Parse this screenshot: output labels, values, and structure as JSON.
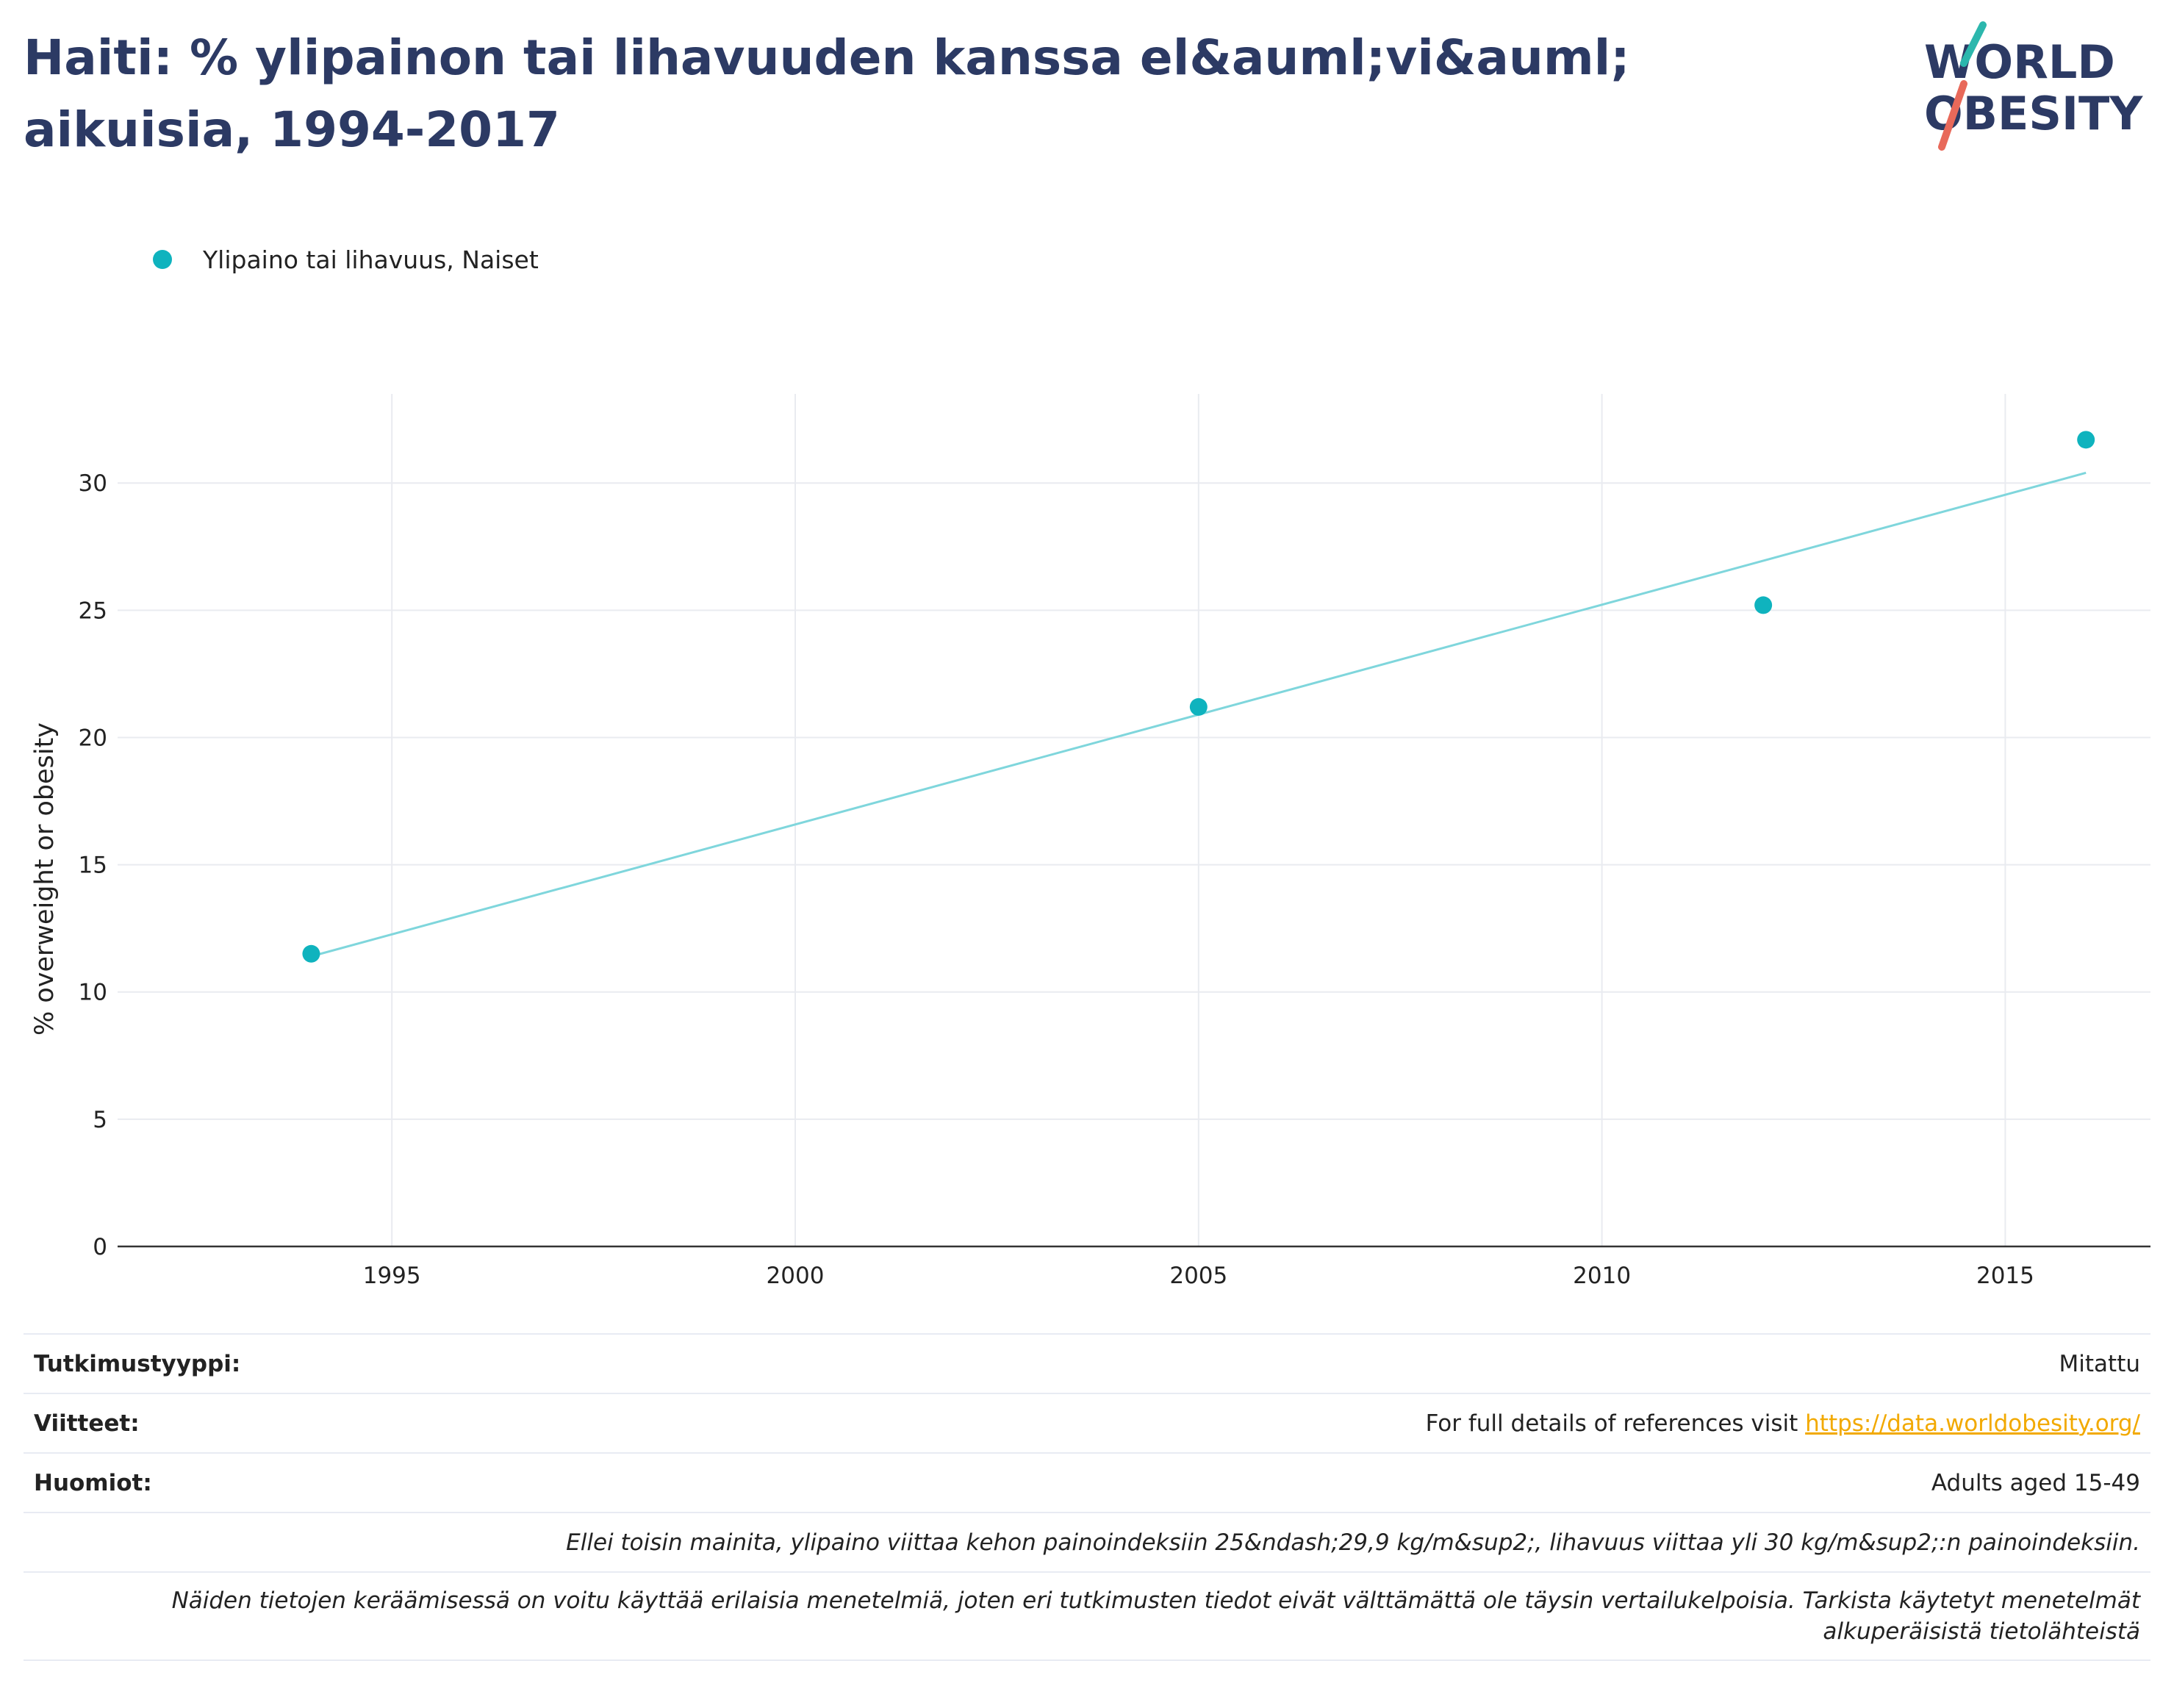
{
  "title": "Haiti: % ylipainon tai lihavuuden kanssa el&auml;vi&auml; aikuisia, 1994-2017",
  "logo": {
    "line1": "WORLD",
    "line2": "OBESITY"
  },
  "colors": {
    "series": "#0fb3be",
    "trend": "#7fd6dc",
    "title": "#2c3a64",
    "link": "#f2a900",
    "logo_teal": "#2cb7ad",
    "logo_red": "#e8695a"
  },
  "chart_data": {
    "type": "scatter",
    "title": "Haiti: % ylipainon tai lihavuuden kanssa el&auml;vi&auml; aikuisia, 1994-2017",
    "xlabel": "",
    "ylabel": "% overweight or obesity",
    "xlim": [
      1991.6,
      2016.8
    ],
    "ylim": [
      0,
      33.5
    ],
    "x_ticks": [
      "1995",
      "2000",
      "2005",
      "2010",
      "2015"
    ],
    "y_ticks": [
      "0",
      "5",
      "10",
      "15",
      "20",
      "25",
      "30"
    ],
    "grid": true,
    "legend": "top-left",
    "series": [
      {
        "name": "Ylipaino tai lihavuus, Naiset",
        "x": [
          1994,
          2005,
          2012,
          2016
        ],
        "y": [
          11.5,
          21.2,
          25.2,
          31.7
        ]
      }
    ],
    "trendline": {
      "x": [
        1994,
        2016
      ],
      "y": [
        11.4,
        30.4
      ]
    }
  },
  "footer": {
    "study_type_label": "Tutkimustyyppi:",
    "study_type_value": "Mitattu",
    "references_label": "Viitteet:",
    "references_text": "For full details of references visit ",
    "references_link": "https://data.worldobesity.org/",
    "notes_label": "Huomiot:",
    "notes_value": "Adults aged 15-49",
    "definition_note": "Ellei toisin mainita, ylipaino viittaa kehon painoindeksiin 25&ndash;29,9 kg/m&sup2;, lihavuus viittaa yli 30 kg/m&sup2;:n painoindeksiin.",
    "methods_note": "Näiden tietojen keräämisessä on voitu käyttää erilaisia menetelmiä, joten eri tutkimusten tiedot eivät välttämättä ole täysin vertailukelpoisia. Tarkista käytetyt menetelmät alkuperäisistä tietolähteistä"
  }
}
